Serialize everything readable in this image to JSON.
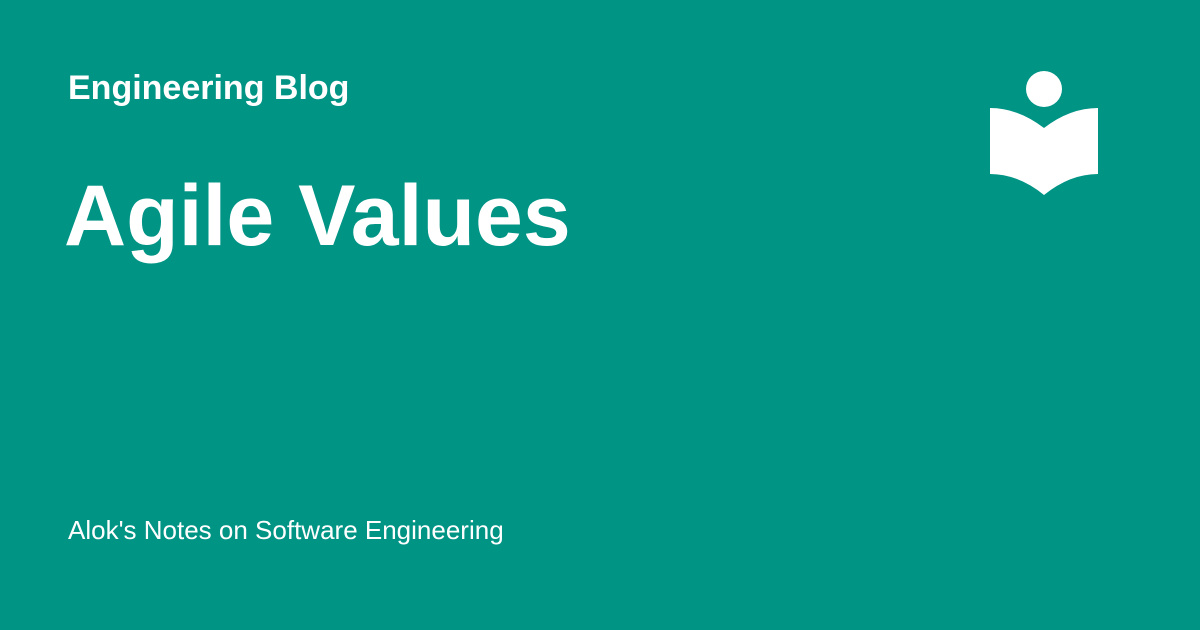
{
  "site": {
    "name": "Engineering Blog",
    "description": "Alok's Notes on Software Engineering"
  },
  "page": {
    "title": "Agile Values"
  },
  "theme": {
    "background": "#009485",
    "foreground": "#ffffff"
  },
  "logo": {
    "icon": "reader-book-icon"
  }
}
